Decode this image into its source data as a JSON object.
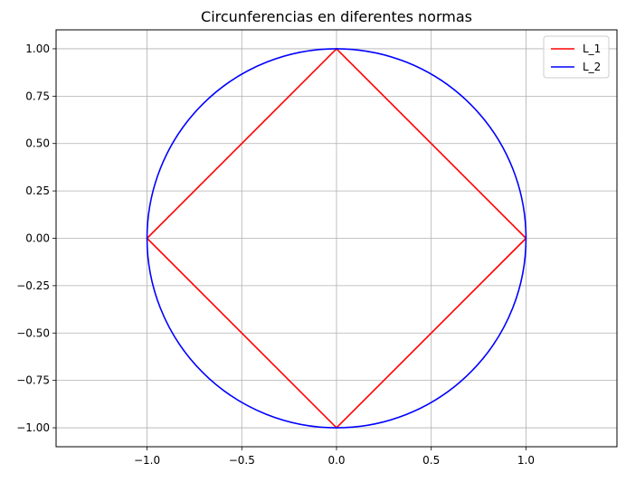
{
  "chart_data": {
    "type": "line",
    "title": "Circunferencias en diferentes normas",
    "xlabel": "",
    "ylabel": "",
    "xlim": [
      -1.48,
      1.48
    ],
    "ylim": [
      -1.1,
      1.1
    ],
    "xticks": [
      -1.0,
      -0.5,
      0.0,
      0.5,
      1.0
    ],
    "xtick_labels": [
      "−1.0",
      "−0.5",
      "0.0",
      "0.5",
      "1.0"
    ],
    "yticks": [
      1.0,
      0.75,
      0.5,
      0.25,
      0.0,
      -0.25,
      -0.5,
      -0.75,
      -1.0
    ],
    "ytick_labels": [
      "1.00",
      "0.75",
      "0.50",
      "0.25",
      "0.00",
      "−0.25",
      "−0.50",
      "−0.75",
      "−1.00"
    ],
    "grid": true,
    "legend_position": "top-right",
    "series": [
      {
        "name": "L_1",
        "color": "#ff0000",
        "x": [
          1,
          0,
          -1,
          0,
          1
        ],
        "y": [
          0,
          1,
          0,
          -1,
          0
        ]
      },
      {
        "name": "L_2",
        "color": "#0000ff",
        "x": [
          1,
          0.866,
          0.5,
          0,
          -0.5,
          -0.866,
          -1,
          -0.866,
          -0.5,
          0,
          0.5,
          0.866,
          1
        ],
        "y": [
          0,
          0.5,
          0.866,
          1,
          0.866,
          0.5,
          0,
          -0.5,
          -0.866,
          -1,
          -0.866,
          -0.5,
          0
        ]
      }
    ]
  }
}
